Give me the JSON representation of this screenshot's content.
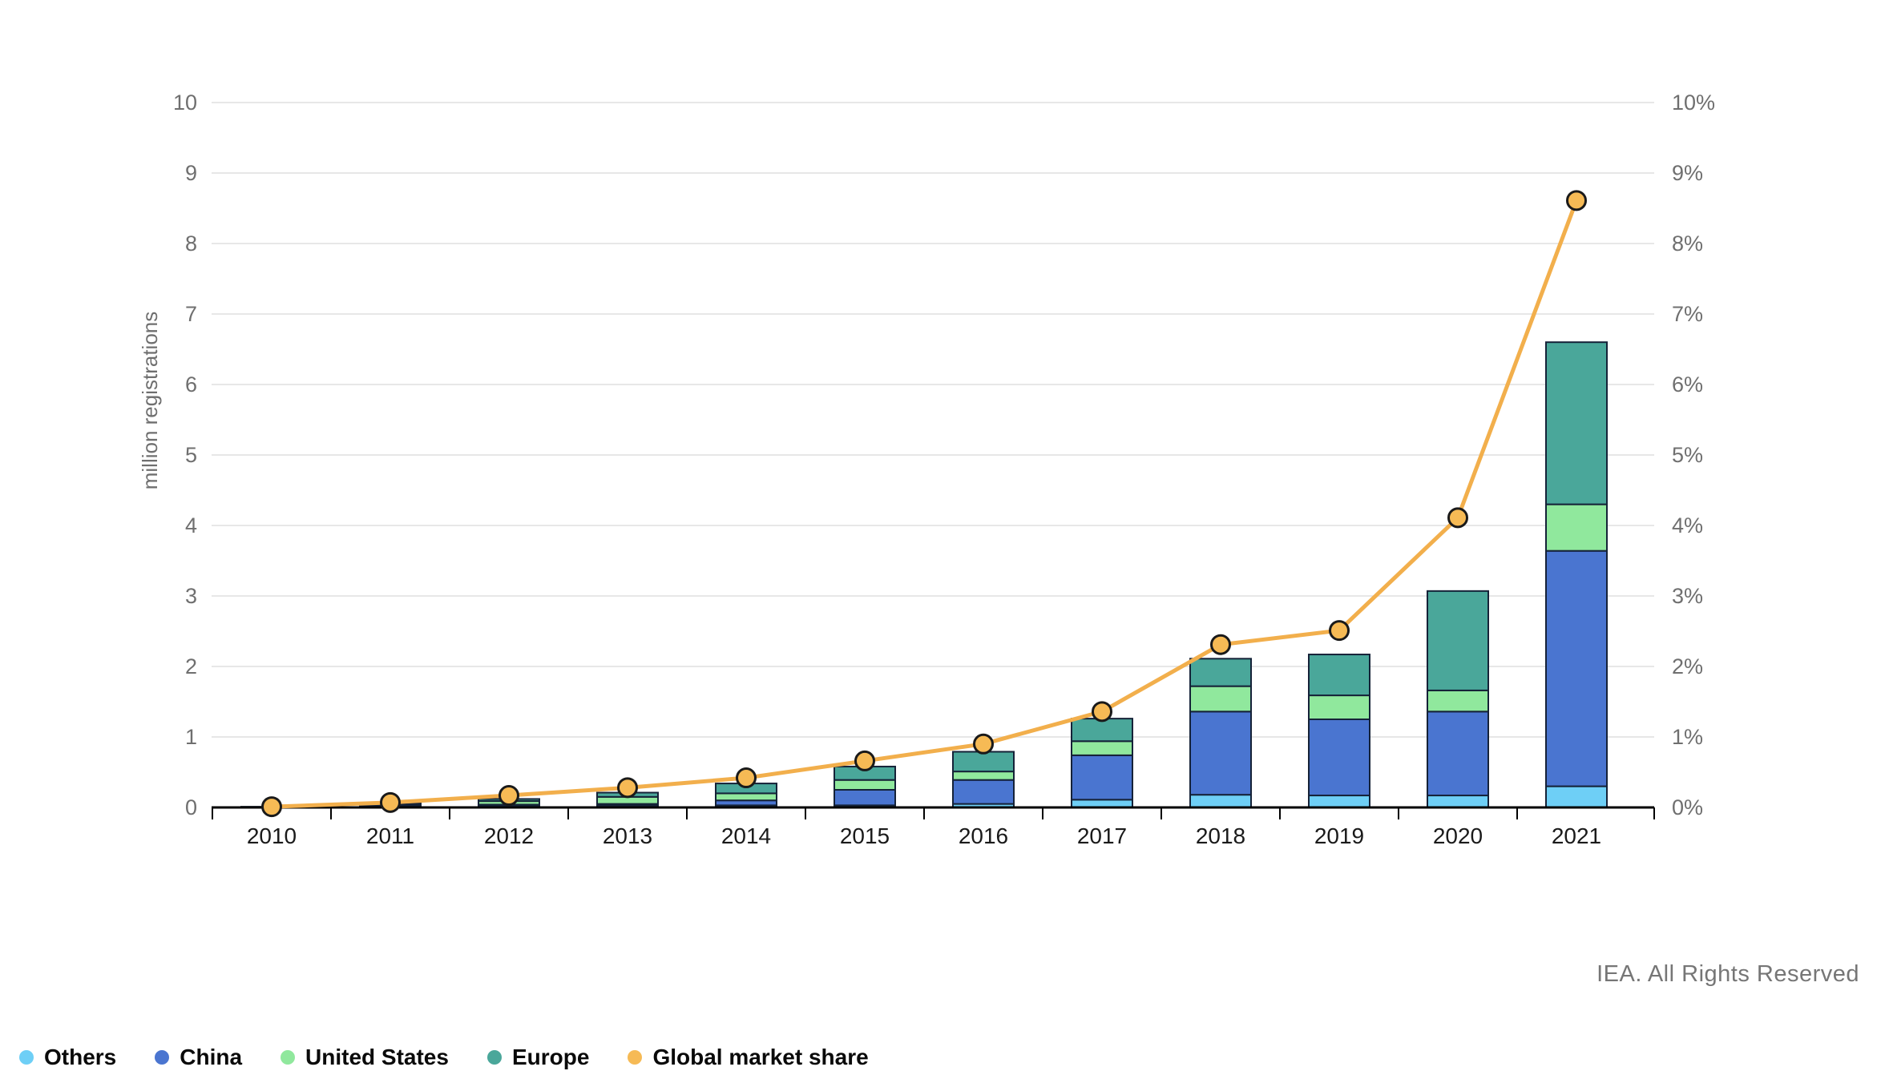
{
  "footer": {
    "credit": "IEA. All Rights Reserved"
  },
  "chart_data": {
    "type": "bar",
    "variant": "stacked-bars-with-line-overlay",
    "title": "",
    "categories": [
      "2010",
      "2011",
      "2012",
      "2013",
      "2014",
      "2015",
      "2016",
      "2017",
      "2018",
      "2019",
      "2020",
      "2021"
    ],
    "bar_series": [
      {
        "name": "Others",
        "color": "#6ECFF6",
        "values": [
          0.0,
          0.02,
          0.03,
          0.03,
          0.03,
          0.03,
          0.05,
          0.11,
          0.18,
          0.17,
          0.17,
          0.3
        ]
      },
      {
        "name": "China",
        "color": "#4A75D0",
        "values": [
          0.0,
          0.01,
          0.01,
          0.02,
          0.07,
          0.22,
          0.34,
          0.63,
          1.18,
          1.08,
          1.19,
          3.34
        ]
      },
      {
        "name": "United States",
        "color": "#90E89D",
        "values": [
          0.0,
          0.02,
          0.05,
          0.1,
          0.1,
          0.14,
          0.12,
          0.2,
          0.36,
          0.34,
          0.3,
          0.66
        ]
      },
      {
        "name": "Europe",
        "color": "#4AA79A",
        "values": [
          0.01,
          0.01,
          0.03,
          0.06,
          0.14,
          0.19,
          0.28,
          0.32,
          0.39,
          0.58,
          1.41,
          2.3
        ]
      }
    ],
    "line_series": {
      "name": "Global market share",
      "color": "#F2AF4C",
      "marker_color": "#F6BA55",
      "axis": "right",
      "values_percent": [
        0.01,
        0.07,
        0.17,
        0.28,
        0.42,
        0.66,
        0.9,
        1.36,
        2.31,
        2.51,
        4.11,
        8.61
      ]
    },
    "left_axis": {
      "label": "million registrations",
      "min": 0,
      "max": 10,
      "ticks": [
        "0",
        "1",
        "2",
        "3",
        "4",
        "5",
        "6",
        "7",
        "8",
        "9",
        "10"
      ]
    },
    "right_axis": {
      "min": 0,
      "max": 10,
      "ticks": [
        "0%",
        "1%",
        "2%",
        "3%",
        "4%",
        "5%",
        "6%",
        "7%",
        "8%",
        "9%",
        "10%"
      ]
    },
    "grid": true,
    "legend_position": "bottom-left",
    "colors": {
      "gridline": "#e7e7e7",
      "axis": "#000000",
      "bar_outline": "#152238",
      "tick_label": "#6f6f6f",
      "year_label": "#1a1a1a",
      "marker_outline": "#1a1a1a"
    }
  }
}
